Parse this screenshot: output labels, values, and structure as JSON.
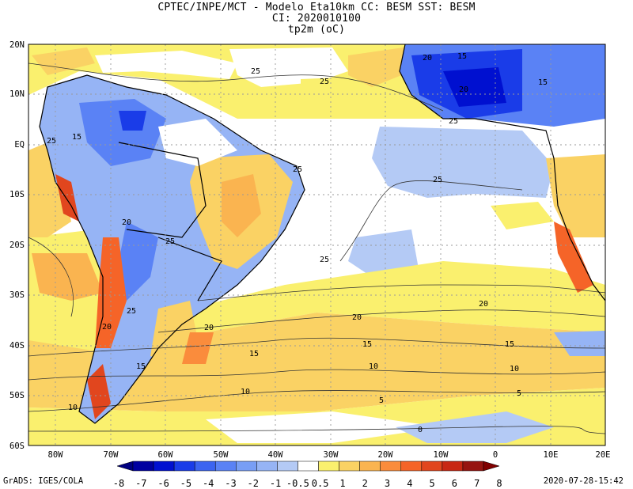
{
  "header": {
    "line1": "CPTEC/INPE/MCT  -  Modelo Eta10km  CC: BESM  SST: BESM",
    "line2": "CI: 2020010100",
    "line3": "tp2m (oC)"
  },
  "axes": {
    "lat_ticks": [
      "20N",
      "10N",
      "EQ",
      "10S",
      "20S",
      "30S",
      "40S",
      "50S",
      "60S"
    ],
    "lon_ticks": [
      "80W",
      "70W",
      "60W",
      "50W",
      "40W",
      "30W",
      "20W",
      "10W",
      "0",
      "10E",
      "20E"
    ]
  },
  "colorbar": {
    "labels": [
      "-8",
      "-7",
      "-6",
      "-5",
      "-4",
      "-3",
      "-2",
      "-1",
      "-0.5",
      "0.5",
      "1",
      "2",
      "3",
      "4",
      "5",
      "6",
      "7",
      "8"
    ],
    "colors": [
      "#0000a0",
      "#0010d0",
      "#1a3ce8",
      "#3c64f0",
      "#5a82f5",
      "#789ef5",
      "#96b4f5",
      "#b4caf5",
      "#ffffff",
      "#faf06e",
      "#fad264",
      "#fab450",
      "#fa8c3c",
      "#f56428",
      "#e1461e",
      "#c82814",
      "#961410"
    ]
  },
  "contour_labels": [
    {
      "text": "25"
    },
    {
      "text": "25"
    },
    {
      "text": "20"
    },
    {
      "text": "15"
    },
    {
      "text": "15"
    },
    {
      "text": "25"
    },
    {
      "text": "25"
    },
    {
      "text": "20"
    },
    {
      "text": "15"
    },
    {
      "text": "25"
    },
    {
      "text": "25"
    },
    {
      "text": "20"
    },
    {
      "text": "20"
    },
    {
      "text": "15"
    },
    {
      "text": "10"
    },
    {
      "text": "10"
    },
    {
      "text": "5"
    },
    {
      "text": "5"
    },
    {
      "text": "0"
    },
    {
      "text": "15"
    },
    {
      "text": "20"
    },
    {
      "text": "10"
    },
    {
      "text": "15"
    },
    {
      "text": "25"
    },
    {
      "text": "25"
    },
    {
      "text": "20"
    },
    {
      "text": "15"
    },
    {
      "text": "10"
    },
    {
      "text": "20"
    },
    {
      "text": "25"
    }
  ],
  "footer": {
    "left": "GrADS: IGES/COLA",
    "right": "2020-07-28-15:42"
  }
}
